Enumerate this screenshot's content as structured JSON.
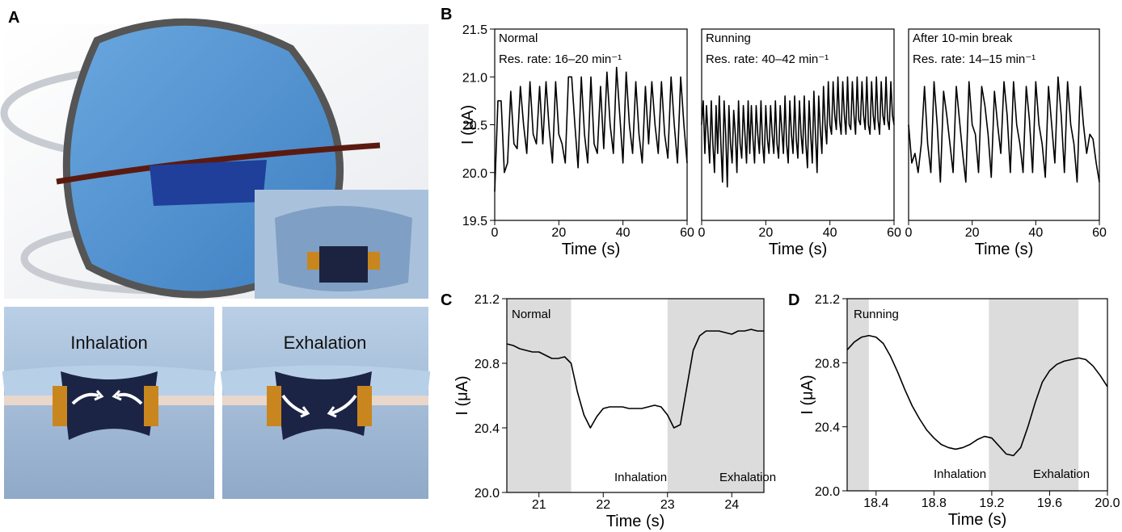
{
  "panel_labels": [
    "A",
    "B",
    "C",
    "D"
  ],
  "photo_labels": [
    "Inhalation",
    "Exhalation"
  ],
  "chart_data": [
    {
      "type": "line",
      "annotations": [
        "Normal",
        "Res. rate: 16–20 min⁻¹"
      ],
      "xlabel": "Time (s)",
      "ylabel": "I (μA)",
      "xlim": [
        0,
        60
      ],
      "xticks": [
        0,
        20,
        40,
        60
      ],
      "ylim": [
        19.5,
        21.5
      ],
      "yticks": [
        19.5,
        {
          "value": 20,
          "label": "20.0"
        },
        20.5,
        {
          "value": 21,
          "label": "21.0"
        },
        21.5
      ],
      "color": "#000000",
      "x": [
        0,
        1,
        2,
        3,
        4,
        5,
        6,
        7,
        8,
        9,
        10,
        11,
        12,
        13,
        14,
        15,
        16,
        17,
        18,
        19,
        20,
        21,
        22,
        23,
        24,
        25,
        26,
        27,
        28,
        29,
        30,
        31,
        32,
        33,
        34,
        35,
        36,
        37,
        38,
        39,
        40,
        41,
        42,
        43,
        44,
        45,
        46,
        47,
        48,
        49,
        50,
        51,
        52,
        53,
        54,
        55,
        56,
        57,
        58,
        59,
        60
      ],
      "values": [
        19.8,
        20.75,
        20.75,
        20.0,
        20.1,
        20.85,
        20.3,
        20.25,
        20.9,
        20.5,
        20.2,
        20.95,
        20.4,
        20.3,
        20.9,
        20.3,
        20.95,
        20.45,
        20.1,
        20.95,
        20.4,
        20.3,
        20.1,
        21.0,
        21.0,
        20.5,
        20.05,
        21.0,
        20.4,
        20.1,
        21.0,
        20.3,
        20.2,
        20.9,
        20.25,
        21.05,
        20.5,
        20.2,
        21.1,
        20.6,
        20.1,
        21.05,
        20.5,
        20.2,
        20.95,
        20.4,
        20.1,
        20.9,
        20.3,
        20.95,
        20.5,
        20.2,
        20.95,
        20.4,
        20.15,
        21.0,
        20.5,
        20.1,
        21.0,
        20.5,
        20.1
      ]
    },
    {
      "type": "line",
      "annotations": [
        "Running",
        "Res. rate: 40–42 min⁻¹"
      ],
      "xlabel": "Time (s)",
      "xlim": [
        0,
        60
      ],
      "xticks": [
        0,
        20,
        40,
        60
      ],
      "ylim": [
        19.5,
        21.5
      ],
      "color": "#000000",
      "x": [
        0,
        0.5,
        1,
        1.5,
        2,
        2.5,
        3,
        3.5,
        4,
        4.5,
        5,
        5.5,
        6,
        6.5,
        7,
        7.5,
        8,
        8.5,
        9,
        9.5,
        10,
        10.5,
        11,
        11.5,
        12,
        12.5,
        13,
        13.5,
        14,
        14.5,
        15,
        15.5,
        16,
        16.5,
        17,
        17.5,
        18,
        18.5,
        19,
        19.5,
        20,
        20.5,
        21,
        21.5,
        22,
        22.5,
        23,
        23.5,
        24,
        24.5,
        25,
        25.5,
        26,
        26.5,
        27,
        27.5,
        28,
        28.5,
        29,
        29.5,
        30,
        30.5,
        31,
        31.5,
        32,
        32.5,
        33,
        33.5,
        34,
        34.5,
        35,
        35.5,
        36,
        36.5,
        37,
        37.5,
        38,
        38.5,
        39,
        39.5,
        40,
        40.5,
        41,
        41.5,
        42,
        42.5,
        43,
        43.5,
        44,
        44.5,
        45,
        45.5,
        46,
        46.5,
        47,
        47.5,
        48,
        48.5,
        49,
        49.5,
        50,
        50.5,
        51,
        51.5,
        52,
        52.5,
        53,
        53.5,
        54,
        54.5,
        55,
        55.5,
        56,
        56.5,
        57,
        57.5,
        58,
        58.5,
        59,
        59.5,
        60
      ],
      "values": [
        20.5,
        20.75,
        20.2,
        20.7,
        20.4,
        20.1,
        20.75,
        20.3,
        20.0,
        20.7,
        20.2,
        20.8,
        20.3,
        19.9,
        20.75,
        20.4,
        19.85,
        20.7,
        20.3,
        20.1,
        20.65,
        20.4,
        20.0,
        20.75,
        20.3,
        20.15,
        20.7,
        20.4,
        20.1,
        20.75,
        20.2,
        20.7,
        20.35,
        20.1,
        20.7,
        20.4,
        20.2,
        20.75,
        20.3,
        20.1,
        20.7,
        20.35,
        20.2,
        20.7,
        20.4,
        20.2,
        20.75,
        20.3,
        20.15,
        20.7,
        20.45,
        20.2,
        20.8,
        20.3,
        20.1,
        20.75,
        20.4,
        20.2,
        20.8,
        20.35,
        20.15,
        20.75,
        20.4,
        20.2,
        20.8,
        20.3,
        20.05,
        20.75,
        20.4,
        20.1,
        20.85,
        20.4,
        20.0,
        20.8,
        20.45,
        20.2,
        20.9,
        20.5,
        20.3,
        20.95,
        20.5,
        20.4,
        20.95,
        20.6,
        20.45,
        21.0,
        20.55,
        20.4,
        20.95,
        20.6,
        20.4,
        21.0,
        20.5,
        20.45,
        20.95,
        20.6,
        20.4,
        21.0,
        20.55,
        20.5,
        20.95,
        20.6,
        20.45,
        21.0,
        20.5,
        20.4,
        20.95,
        20.6,
        20.45,
        21.0,
        20.55,
        20.4,
        20.95,
        20.6,
        20.5,
        21.0,
        20.55,
        20.45,
        20.95,
        20.6,
        20.5
      ]
    },
    {
      "type": "line",
      "annotations": [
        "After 10-min break",
        "Res. rate: 14–15 min⁻¹"
      ],
      "xlabel": "Time (s)",
      "xlim": [
        0,
        60
      ],
      "xticks": [
        0,
        20,
        40,
        60
      ],
      "ylim": [
        19.5,
        21.5
      ],
      "color": "#000000",
      "x": [
        0,
        1,
        2,
        3,
        4,
        5,
        6,
        7,
        8,
        9,
        10,
        11,
        12,
        13,
        14,
        15,
        16,
        17,
        18,
        19,
        20,
        21,
        22,
        23,
        24,
        25,
        26,
        27,
        28,
        29,
        30,
        31,
        32,
        33,
        34,
        35,
        36,
        37,
        38,
        39,
        40,
        41,
        42,
        43,
        44,
        45,
        46,
        47,
        48,
        49,
        50,
        51,
        52,
        53,
        54,
        55,
        56,
        57,
        58,
        59,
        60
      ],
      "values": [
        20.5,
        20.1,
        20.2,
        20.0,
        20.3,
        20.9,
        20.3,
        20.0,
        20.95,
        20.5,
        19.9,
        20.85,
        20.6,
        20.3,
        20.0,
        20.9,
        20.55,
        20.2,
        19.9,
        20.95,
        20.5,
        20.4,
        20.0,
        20.9,
        20.7,
        20.4,
        19.95,
        20.85,
        20.5,
        20.2,
        20.95,
        20.6,
        20.0,
        20.95,
        20.5,
        20.3,
        20.0,
        20.9,
        20.55,
        20.0,
        20.95,
        20.5,
        20.3,
        19.95,
        20.9,
        20.5,
        20.1,
        21.0,
        20.6,
        20.0,
        20.95,
        20.5,
        20.3,
        19.9,
        20.9,
        20.5,
        20.2,
        20.4,
        20.35,
        20.1,
        19.9
      ]
    },
    {
      "type": "line",
      "annotations": [
        "Normal",
        "Inhalation",
        "Exhalation"
      ],
      "xlabel": "Time (s)",
      "ylabel": "I (μA)",
      "xlim": [
        20.5,
        24.5
      ],
      "xticks": [
        21,
        22,
        23,
        24
      ],
      "ylim": [
        20,
        21.2
      ],
      "yticks": [
        {
          "value": 20,
          "label": "20.0"
        },
        20.4,
        20.8,
        21.2
      ],
      "shaded_ranges": [
        [
          20.5,
          21.5
        ],
        [
          23,
          24.5
        ]
      ],
      "color": "#000000",
      "x": [
        20.5,
        20.6,
        20.7,
        20.8,
        20.9,
        21.0,
        21.1,
        21.2,
        21.3,
        21.4,
        21.5,
        21.6,
        21.7,
        21.8,
        21.9,
        22.0,
        22.1,
        22.2,
        22.3,
        22.4,
        22.5,
        22.6,
        22.7,
        22.8,
        22.9,
        23.0,
        23.1,
        23.2,
        23.3,
        23.4,
        23.5,
        23.6,
        23.7,
        23.8,
        23.9,
        24.0,
        24.1,
        24.2,
        24.3,
        24.4,
        24.5
      ],
      "values": [
        20.92,
        20.91,
        20.89,
        20.88,
        20.87,
        20.87,
        20.85,
        20.83,
        20.83,
        20.84,
        20.8,
        20.62,
        20.48,
        20.4,
        20.47,
        20.52,
        20.53,
        20.53,
        20.53,
        20.52,
        20.52,
        20.52,
        20.53,
        20.54,
        20.53,
        20.48,
        20.4,
        20.42,
        20.65,
        20.88,
        20.97,
        21.0,
        21.0,
        21.0,
        20.99,
        20.98,
        21.0,
        21.0,
        21.01,
        21.0,
        21.0
      ]
    },
    {
      "type": "line",
      "annotations": [
        "Running",
        "Inhalation",
        "Exhalation"
      ],
      "xlabel": "Time (s)",
      "ylabel": "I (μA)",
      "xlim": [
        18.2,
        20
      ],
      "xticks": [
        18.4,
        18.8,
        19.2,
        19.6,
        {
          "value": 20,
          "label": "20.0"
        }
      ],
      "ylim": [
        20,
        21.2
      ],
      "yticks": [
        {
          "value": 20,
          "label": "20.0"
        },
        20.4,
        20.8,
        21.2
      ],
      "shaded_ranges": [
        [
          18.2,
          18.35
        ],
        [
          19.18,
          19.8
        ]
      ],
      "color": "#000000",
      "x": [
        18.2,
        18.25,
        18.3,
        18.35,
        18.4,
        18.45,
        18.5,
        18.55,
        18.6,
        18.65,
        18.7,
        18.75,
        18.8,
        18.85,
        18.9,
        18.95,
        19.0,
        19.05,
        19.1,
        19.15,
        19.2,
        19.25,
        19.3,
        19.35,
        19.4,
        19.45,
        19.5,
        19.55,
        19.6,
        19.65,
        19.7,
        19.75,
        19.8,
        19.85,
        19.9,
        19.95,
        20.0
      ],
      "values": [
        20.88,
        20.93,
        20.96,
        20.97,
        20.96,
        20.92,
        20.84,
        20.74,
        20.63,
        20.53,
        20.45,
        20.38,
        20.33,
        20.29,
        20.27,
        20.26,
        20.27,
        20.29,
        20.32,
        20.34,
        20.33,
        20.28,
        20.23,
        20.22,
        20.27,
        20.4,
        20.55,
        20.68,
        20.75,
        20.79,
        20.81,
        20.82,
        20.83,
        20.82,
        20.78,
        20.72,
        20.65
      ]
    }
  ]
}
